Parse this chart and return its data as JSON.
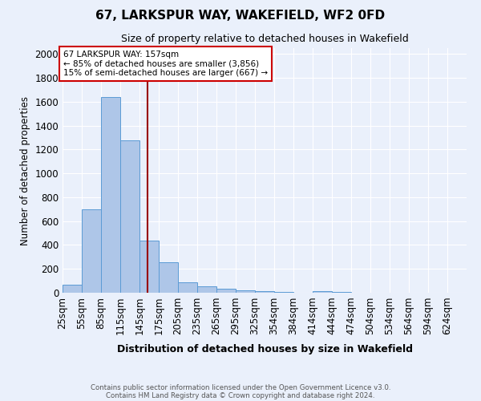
{
  "title1": "67, LARKSPUR WAY, WAKEFIELD, WF2 0FD",
  "title2": "Size of property relative to detached houses in Wakefield",
  "xlabel": "Distribution of detached houses by size in Wakefield",
  "ylabel": "Number of detached properties",
  "footer1": "Contains HM Land Registry data © Crown copyright and database right 2024.",
  "footer2": "Contains public sector information licensed under the Open Government Licence v3.0.",
  "categories": [
    "25sqm",
    "55sqm",
    "85sqm",
    "115sqm",
    "145sqm",
    "175sqm",
    "205sqm",
    "235sqm",
    "265sqm",
    "295sqm",
    "325sqm",
    "354sqm",
    "384sqm",
    "414sqm",
    "444sqm",
    "474sqm",
    "504sqm",
    "534sqm",
    "564sqm",
    "594sqm",
    "624sqm"
  ],
  "values": [
    65,
    700,
    1640,
    1280,
    440,
    255,
    90,
    55,
    35,
    22,
    15,
    8,
    0,
    15,
    5,
    0,
    0,
    0,
    0,
    0,
    0
  ],
  "bar_color": "#aec6e8",
  "bar_edge_color": "#5b9bd5",
  "bg_color": "#eaf0fb",
  "grid_color": "#ffffff",
  "vline_x_idx": 4.4,
  "vline_color": "#990000",
  "annotation_line1": "67 LARKSPUR WAY: 157sqm",
  "annotation_line2": "← 85% of detached houses are smaller (3,856)",
  "annotation_line3": "15% of semi-detached houses are larger (667) →",
  "annotation_box_color": "#ffffff",
  "annotation_box_edge": "#cc0000",
  "ylim_max": 2050,
  "bin_width": 30,
  "yticks": [
    0,
    200,
    400,
    600,
    800,
    1000,
    1200,
    1400,
    1600,
    1800,
    2000
  ]
}
